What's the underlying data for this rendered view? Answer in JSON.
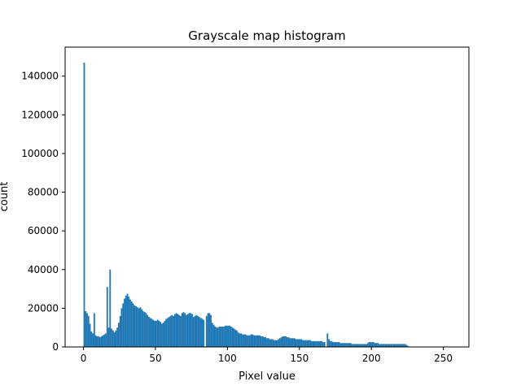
{
  "chart_data": {
    "type": "bar",
    "title": "Grayscale map histogram",
    "xlabel": "Pixel value",
    "ylabel": "count",
    "xlim": [
      -12.75,
      267.75
    ],
    "ylim": [
      0,
      155000
    ],
    "x_ticks": [
      0,
      50,
      100,
      150,
      200,
      250
    ],
    "y_ticks": [
      0,
      20000,
      40000,
      60000,
      80000,
      100000,
      120000,
      140000
    ],
    "grid": false,
    "legend": "none",
    "bar_color": "#1f77b4",
    "bins": {
      "start": 0,
      "width": 1,
      "values": [
        147000,
        18500,
        17500,
        16000,
        12000,
        8000,
        7000,
        17500,
        6000,
        5500,
        5500,
        5000,
        5500,
        6000,
        6500,
        7000,
        31000,
        10000,
        40000,
        9500,
        8500,
        7500,
        8500,
        10000,
        12500,
        16000,
        20000,
        22500,
        25000,
        26500,
        27500,
        26000,
        24500,
        23500,
        22500,
        21500,
        21000,
        20500,
        20000,
        20500,
        19500,
        18500,
        18000,
        17500,
        16500,
        15500,
        15000,
        14500,
        14000,
        13500,
        13500,
        14000,
        13500,
        13000,
        12000,
        12500,
        13500,
        14500,
        15000,
        15500,
        16000,
        16500,
        16000,
        17000,
        17500,
        17000,
        16500,
        16000,
        17500,
        18000,
        17500,
        16500,
        17000,
        17500,
        17500,
        17000,
        15500,
        16000,
        16500,
        16000,
        15500,
        15000,
        14500,
        14000,
        0,
        16000,
        17500,
        17500,
        16500,
        12500,
        11500,
        10500,
        10000,
        10000,
        10500,
        10500,
        10500,
        10500,
        11000,
        11000,
        11000,
        11000,
        10500,
        10000,
        9500,
        9000,
        8500,
        7500,
        7000,
        7000,
        6500,
        6500,
        6500,
        6000,
        6000,
        6000,
        6500,
        6500,
        6000,
        6000,
        6000,
        6000,
        6000,
        5500,
        5500,
        5000,
        5000,
        4500,
        4500,
        4000,
        4000,
        4000,
        3500,
        3500,
        3500,
        4000,
        4500,
        5000,
        5500,
        5500,
        5500,
        5000,
        5000,
        4500,
        4500,
        4500,
        4500,
        4000,
        4000,
        4000,
        4000,
        4000,
        3500,
        3500,
        3500,
        3500,
        3500,
        3500,
        3000,
        3000,
        3000,
        3000,
        3000,
        3000,
        3000,
        3000,
        2500,
        2500,
        0,
        7000,
        4000,
        3000,
        3000,
        2500,
        2500,
        2500,
        2500,
        2500,
        2000,
        2000,
        2000,
        2000,
        2000,
        2000,
        2000,
        2000,
        1500,
        1500,
        1500,
        1500,
        1500,
        1500,
        1500,
        1500,
        1500,
        1500,
        1500,
        2000,
        2500,
        2500,
        2500,
        2500,
        2000,
        2000,
        2000,
        1500,
        1500,
        1500,
        1500,
        1500,
        1500,
        1500,
        1500,
        1500,
        1500,
        1500,
        1500,
        1500,
        1500,
        1500,
        1500,
        1500,
        1500,
        1500,
        1000,
        500,
        0,
        0,
        0,
        0,
        0,
        0,
        0,
        0,
        0,
        0,
        0,
        0,
        0,
        0,
        0,
        0,
        0,
        0,
        0,
        0,
        0,
        0,
        0,
        0,
        0,
        0,
        0,
        0,
        0,
        0
      ]
    }
  }
}
